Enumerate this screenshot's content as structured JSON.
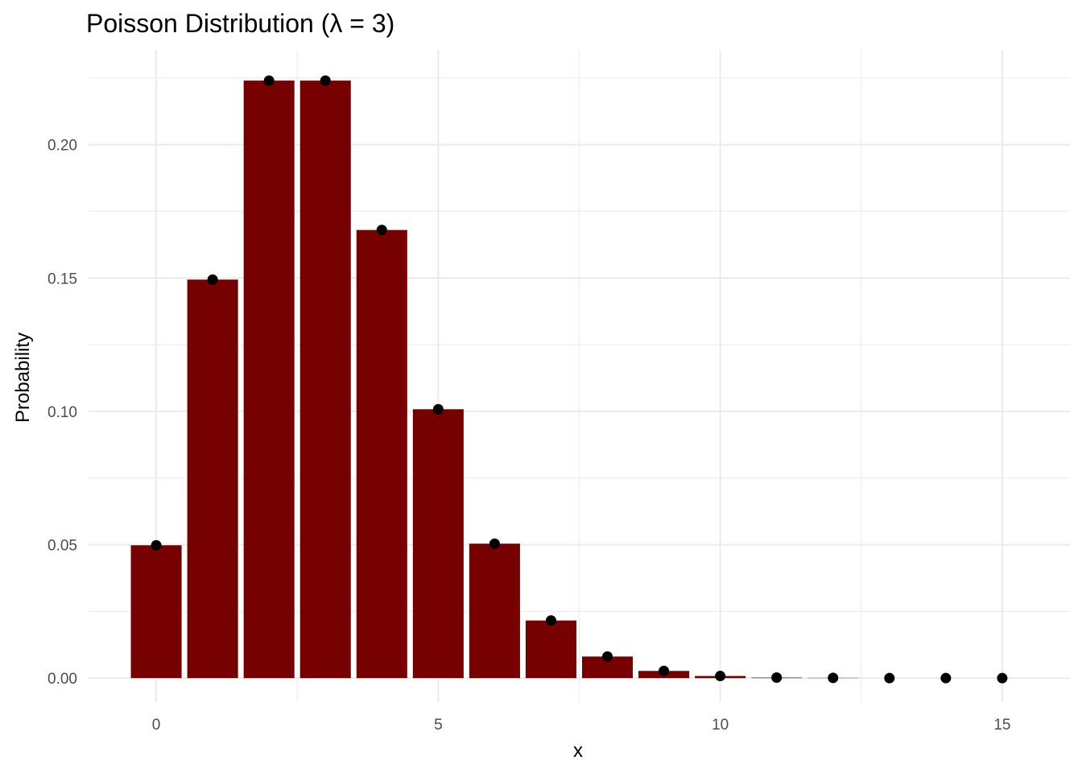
{
  "chart_data": {
    "type": "bar",
    "title": "Poisson Distribution (λ = 3)",
    "xlabel": "x",
    "ylabel": "Probability",
    "x": [
      0,
      1,
      2,
      3,
      4,
      5,
      6,
      7,
      8,
      9,
      10,
      11,
      12,
      13,
      14,
      15
    ],
    "values": [
      0.0498,
      0.1494,
      0.224,
      0.224,
      0.168,
      0.1008,
      0.0504,
      0.0216,
      0.0081,
      0.0027,
      0.0008,
      0.0002,
      0.0001,
      0.0,
      0.0,
      0.0
    ],
    "points": true,
    "xlim": [
      -1.2,
      16.2
    ],
    "ylim": [
      -0.009,
      0.2355
    ],
    "x_ticks": [
      0,
      5,
      10,
      15
    ],
    "x_tick_labels": [
      "0",
      "5",
      "10",
      "15"
    ],
    "y_ticks": [
      0.0,
      0.05,
      0.1,
      0.15,
      0.2
    ],
    "y_tick_labels": [
      "0.00",
      "0.05",
      "0.10",
      "0.15",
      "0.20"
    ],
    "grid": true,
    "legend": "none",
    "bar_color": "#770000",
    "point_color": "#000000",
    "grid_color": "#ebebeb",
    "background_color": "#ffffff"
  }
}
